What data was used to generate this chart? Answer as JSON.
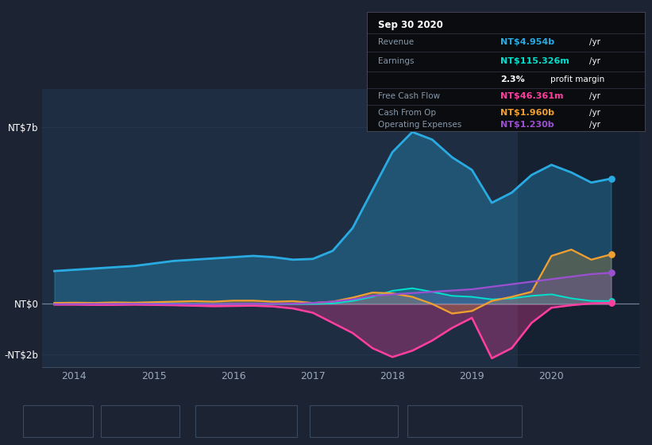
{
  "background_color": "#1c2333",
  "plot_bg_color": "#1e2d42",
  "grid_color": "#2a3a55",
  "ylim": [
    -2500000000.0,
    8500000000.0
  ],
  "ytick_positions": [
    0,
    7000000000.0,
    -2000000000.0
  ],
  "ytick_labels": [
    "NT$0",
    "NT$7b",
    "-NT$2b"
  ],
  "xticks": [
    2014,
    2015,
    2016,
    2017,
    2018,
    2019,
    2020
  ],
  "xlim": [
    2013.6,
    2021.1
  ],
  "colors": {
    "revenue": "#29abe2",
    "earnings": "#00e0cc",
    "free_cash_flow": "#ff3fa0",
    "cash_from_op": "#f0a030",
    "operating_expenses": "#9b50d0"
  },
  "legend_labels": [
    "Revenue",
    "Earnings",
    "Free Cash Flow",
    "Cash From Op",
    "Operating Expenses"
  ],
  "tooltip": {
    "date": "Sep 30 2020",
    "revenue_val": "NT$4.954b",
    "earnings_val": "NT$115.326m",
    "profit_margin": "2.3%",
    "free_cash_flow_val": "NT$46.361m",
    "cash_from_op_val": "NT$1.960b",
    "op_expenses_val": "NT$1.230b"
  },
  "revenue_x": [
    2013.75,
    2014.0,
    2014.25,
    2014.5,
    2014.75,
    2015.0,
    2015.25,
    2015.5,
    2015.75,
    2016.0,
    2016.25,
    2016.5,
    2016.75,
    2017.0,
    2017.25,
    2017.5,
    2017.75,
    2018.0,
    2018.25,
    2018.5,
    2018.75,
    2019.0,
    2019.25,
    2019.5,
    2019.75,
    2020.0,
    2020.25,
    2020.5,
    2020.75
  ],
  "revenue_y": [
    1300000000.0,
    1350000000.0,
    1400000000.0,
    1450000000.0,
    1500000000.0,
    1600000000.0,
    1700000000.0,
    1750000000.0,
    1800000000.0,
    1850000000.0,
    1900000000.0,
    1850000000.0,
    1750000000.0,
    1780000000.0,
    2100000000.0,
    3000000000.0,
    4500000000.0,
    6000000000.0,
    6800000000.0,
    6500000000.0,
    5800000000.0,
    5300000000.0,
    4000000000.0,
    4400000000.0,
    5100000000.0,
    5500000000.0,
    5200000000.0,
    4800000000.0,
    4954000000.0
  ],
  "earnings_x": [
    2013.75,
    2014.0,
    2014.25,
    2014.5,
    2014.75,
    2015.0,
    2015.25,
    2015.5,
    2015.75,
    2016.0,
    2016.25,
    2016.5,
    2016.75,
    2017.0,
    2017.25,
    2017.5,
    2017.75,
    2018.0,
    2018.25,
    2018.5,
    2018.75,
    2019.0,
    2019.25,
    2019.5,
    2019.75,
    2020.0,
    2020.25,
    2020.5,
    2020.75
  ],
  "earnings_y": [
    -10000000.0,
    -5000000.0,
    -10000000.0,
    0.0,
    5000000.0,
    10000000.0,
    5000000.0,
    0.0,
    -5000000.0,
    0.0,
    5000000.0,
    -5000000.0,
    -5000000.0,
    0.0,
    20000000.0,
    120000000.0,
    280000000.0,
    520000000.0,
    620000000.0,
    480000000.0,
    320000000.0,
    280000000.0,
    180000000.0,
    220000000.0,
    320000000.0,
    380000000.0,
    220000000.0,
    120000000.0,
    115000000.0
  ],
  "fcf_x": [
    2013.75,
    2014.0,
    2014.25,
    2014.5,
    2014.75,
    2015.0,
    2015.25,
    2015.5,
    2015.75,
    2016.0,
    2016.25,
    2016.5,
    2016.75,
    2017.0,
    2017.25,
    2017.5,
    2017.75,
    2018.0,
    2018.25,
    2018.5,
    2018.75,
    2019.0,
    2019.25,
    2019.5,
    2019.75,
    2020.0,
    2020.25,
    2020.5,
    2020.75
  ],
  "fcf_y": [
    -30000000.0,
    -30000000.0,
    -40000000.0,
    -40000000.0,
    -30000000.0,
    -40000000.0,
    -50000000.0,
    -70000000.0,
    -90000000.0,
    -80000000.0,
    -70000000.0,
    -100000000.0,
    -180000000.0,
    -350000000.0,
    -750000000.0,
    -1150000000.0,
    -1750000000.0,
    -2100000000.0,
    -1850000000.0,
    -1450000000.0,
    -950000000.0,
    -550000000.0,
    -2150000000.0,
    -1750000000.0,
    -750000000.0,
    -150000000.0,
    -50000000.0,
    20000000.0,
    46000000.0
  ],
  "cop_x": [
    2013.75,
    2014.0,
    2014.25,
    2014.5,
    2014.75,
    2015.0,
    2015.25,
    2015.5,
    2015.75,
    2016.0,
    2016.25,
    2016.5,
    2016.75,
    2017.0,
    2017.25,
    2017.5,
    2017.75,
    2018.0,
    2018.25,
    2018.5,
    2018.75,
    2019.0,
    2019.25,
    2019.5,
    2019.75,
    2020.0,
    2020.25,
    2020.5,
    2020.75
  ],
  "cop_y": [
    40000000.0,
    50000000.0,
    40000000.0,
    60000000.0,
    50000000.0,
    70000000.0,
    90000000.0,
    110000000.0,
    90000000.0,
    130000000.0,
    130000000.0,
    90000000.0,
    110000000.0,
    40000000.0,
    90000000.0,
    250000000.0,
    450000000.0,
    420000000.0,
    280000000.0,
    0.0,
    -380000000.0,
    -280000000.0,
    120000000.0,
    280000000.0,
    480000000.0,
    1900000000.0,
    2150000000.0,
    1750000000.0,
    1960000000.0
  ],
  "opex_x": [
    2013.75,
    2014.0,
    2014.25,
    2014.5,
    2014.75,
    2015.0,
    2015.25,
    2015.5,
    2015.75,
    2016.0,
    2016.25,
    2016.5,
    2016.75,
    2017.0,
    2017.25,
    2017.5,
    2017.75,
    2018.0,
    2018.25,
    2018.5,
    2018.75,
    2019.0,
    2019.25,
    2019.5,
    2019.75,
    2020.0,
    2020.25,
    2020.5,
    2020.75
  ],
  "opex_y": [
    -10000000.0,
    -5000000.0,
    0.0,
    0.0,
    5000000.0,
    0.0,
    -5000000.0,
    -10000000.0,
    -10000000.0,
    5000000.0,
    10000000.0,
    5000000.0,
    10000000.0,
    40000000.0,
    90000000.0,
    180000000.0,
    320000000.0,
    380000000.0,
    430000000.0,
    480000000.0,
    530000000.0,
    580000000.0,
    680000000.0,
    780000000.0,
    880000000.0,
    980000000.0,
    1080000000.0,
    1180000000.0,
    1230000000.0
  ],
  "shaded_start": 2019.58,
  "shaded_end": 2021.2
}
